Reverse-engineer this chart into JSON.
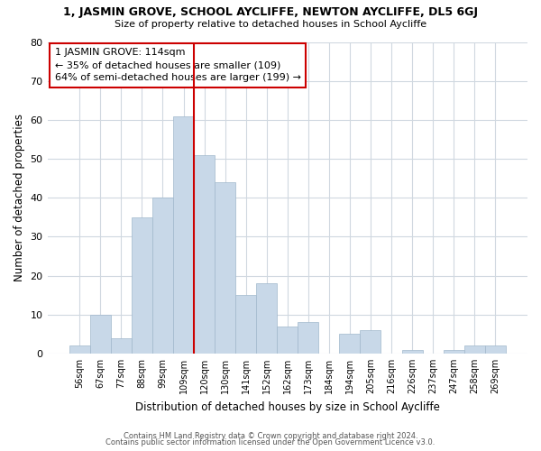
{
  "title": "1, JASMIN GROVE, SCHOOL AYCLIFFE, NEWTON AYCLIFFE, DL5 6GJ",
  "subtitle": "Size of property relative to detached houses in School Aycliffe",
  "xlabel": "Distribution of detached houses by size in School Aycliffe",
  "ylabel": "Number of detached properties",
  "bar_labels": [
    "56sqm",
    "67sqm",
    "77sqm",
    "88sqm",
    "99sqm",
    "109sqm",
    "120sqm",
    "130sqm",
    "141sqm",
    "152sqm",
    "162sqm",
    "173sqm",
    "184sqm",
    "194sqm",
    "205sqm",
    "216sqm",
    "226sqm",
    "237sqm",
    "247sqm",
    "258sqm",
    "269sqm"
  ],
  "bar_heights": [
    2,
    10,
    4,
    35,
    40,
    61,
    51,
    44,
    15,
    18,
    7,
    8,
    0,
    5,
    6,
    0,
    1,
    0,
    1,
    2,
    2
  ],
  "bar_color": "#c8d8e8",
  "bar_edge_color": "#a0b8cc",
  "vline_x": 5.5,
  "vline_color": "#cc0000",
  "annotation_text": "1 JASMIN GROVE: 114sqm\n← 35% of detached houses are smaller (109)\n64% of semi-detached houses are larger (199) →",
  "ylim": [
    0,
    80
  ],
  "yticks": [
    0,
    10,
    20,
    30,
    40,
    50,
    60,
    70,
    80
  ],
  "footer1": "Contains HM Land Registry data © Crown copyright and database right 2024.",
  "footer2": "Contains public sector information licensed under the Open Government Licence v3.0.",
  "background_color": "#ffffff",
  "grid_color": "#d0d8e0"
}
